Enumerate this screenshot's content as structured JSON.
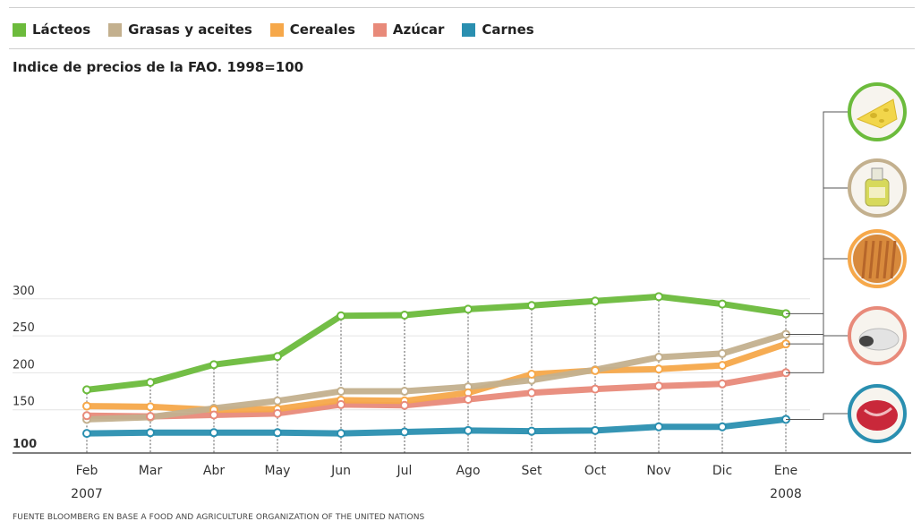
{
  "legend": {
    "items": [
      {
        "label": "Lácteos",
        "color": "#6cbb3c"
      },
      {
        "label": "Grasas y aceites",
        "color": "#c3b08e"
      },
      {
        "label": "Cereales",
        "color": "#f6a84a"
      },
      {
        "label": "Azúcar",
        "color": "#e88a7a"
      },
      {
        "label": "Carnes",
        "color": "#2a8fb0"
      }
    ]
  },
  "subtitle": "Indice de precios de la FAO. 1998=100",
  "source": "FUENTE   BLOOMBERG EN BASE A FOOD AND AGRICULTURE ORGANIZATION OF THE UNITED NATIONS",
  "chart_data": {
    "type": "line",
    "title": "Indice de precios de la FAO. 1998=100",
    "categories": [
      "Feb",
      "Mar",
      "Abr",
      "May",
      "Jun",
      "Jul",
      "Ago",
      "Set",
      "Oct",
      "Nov",
      "Dic",
      "Ene"
    ],
    "category_sublabels": [
      "2007",
      "",
      "",
      "",
      "",
      "",
      "",
      "",
      "",
      "",
      "",
      "2008"
    ],
    "ylim": [
      100,
      300
    ],
    "yticks": [
      100,
      150,
      200,
      250,
      300
    ],
    "grid": true,
    "legend_position": "top",
    "series": [
      {
        "name": "Lácteos",
        "color": "#6cbb3c",
        "icon": "cheese-icon",
        "values": [
          177,
          187,
          211,
          222,
          277,
          278,
          286,
          291,
          297,
          303,
          293,
          280
        ]
      },
      {
        "name": "Grasas y aceites",
        "color": "#c3b08e",
        "icon": "oil-bottle-icon",
        "values": [
          137,
          140,
          152,
          162,
          175,
          175,
          181,
          190,
          204,
          221,
          226,
          252
        ]
      },
      {
        "name": "Cereales",
        "color": "#f6a84a",
        "icon": "wheat-icon",
        "values": [
          155,
          154,
          150,
          151,
          163,
          162,
          173,
          198,
          203,
          205,
          210,
          239
        ]
      },
      {
        "name": "Azúcar",
        "color": "#e88a7a",
        "icon": "sugar-icon",
        "values": [
          142,
          141,
          143,
          145,
          157,
          156,
          164,
          173,
          178,
          182,
          185,
          200
        ]
      },
      {
        "name": "Carnes",
        "color": "#2a8fb0",
        "icon": "meat-icon",
        "values": [
          118,
          119,
          119,
          119,
          118,
          120,
          122,
          121,
          122,
          127,
          127,
          137
        ]
      }
    ]
  }
}
